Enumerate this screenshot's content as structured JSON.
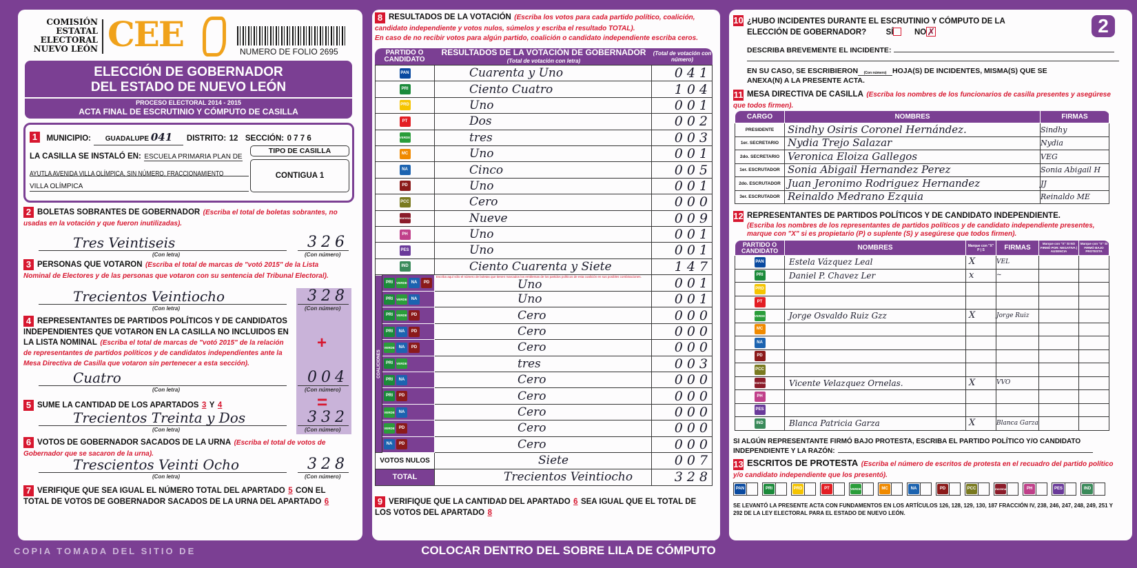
{
  "header": {
    "org_lines": [
      "COMISIÓN",
      "ESTATAL",
      "ELECTORAL",
      "NUEVO LEÓN"
    ],
    "logo_text": "CEE",
    "folio": "NUMERO DE FOLIO 2695",
    "title_1": "ELECCIÓN DE GOBERNADOR",
    "title_2": "DEL ESTADO DE NUEVO LEÓN",
    "process": "PROCESO ELECTORAL 2014 - 2015",
    "acta": "ACTA FINAL DE ESCRUTINIO Y CÓMPUTO DE CASILLA",
    "page_number": "2"
  },
  "s1": {
    "municipio_label": "MUNICIPIO:",
    "municipio": "GUADALUPE",
    "municipio_hand": "041",
    "distrito_label": "DISTRITO:",
    "distrito": "12",
    "seccion_label": "SECCIÓN:",
    "seccion": "0 7 7 6",
    "instalo_label": "LA CASILLA SE INSTALÓ EN:",
    "lugar_1": "ESCUELA PRIMARIA PLAN DE",
    "lugar_2": "AYUTLA AVENIDA VILLA OLÍMPICA, SIN NÚMERO, FRACCIONAMIENTO",
    "lugar_3": "VILLA OLÍMPICA",
    "tipo_label": "TIPO DE CASILLA",
    "tipo": "CONTIGUA 1"
  },
  "labels": {
    "con_letra": "(Con letra)",
    "con_numero": "(Con número)",
    "plus": "+",
    "equals": "="
  },
  "s2": {
    "title": "BOLETAS SOBRANTES DE GOBERNADOR",
    "note": "(Escriba el total de boletas sobrantes, no usadas en la votación y que fueron inutilizadas).",
    "letra": "Tres Veintiseis",
    "numero": "326"
  },
  "s3": {
    "title": "PERSONAS QUE VOTARON",
    "note": "(Escriba el total de marcas de \"votó 2015\" de la Lista Nominal de Electores y de las personas que votaron con su sentencia del Tribunal Electoral).",
    "letra": "Trecientos Veintiocho",
    "numero": "328"
  },
  "s4": {
    "title": "REPRESENTANTES DE PARTIDOS POLÍTICOS Y DE CANDIDATOS INDEPENDIENTES QUE VOTARON EN LA CASILLA NO INCLUIDOS EN LA LISTA NOMINAL",
    "note": "(Escriba el total de marcas de \"votó 2015\" de la relación de representantes de partidos políticos y de candidatos independientes ante la Mesa Directiva de Casilla que votaron sin pertenecer a esta sección).",
    "letra": "Cuatro",
    "numero": "004"
  },
  "s5": {
    "title": "SUME LA CANTIDAD DE LOS APARTADOS",
    "a": "3",
    "y": "Y",
    "b": "4",
    "letra": "Trecientos Treinta y Dos",
    "numero": "332"
  },
  "s6": {
    "title": "VOTOS DE GOBERNADOR SACADOS DE LA URNA",
    "note": "(Escriba el total de votos de Gobernador que se sacaron de la urna).",
    "letra": "Trescientos Veinti Ocho",
    "numero": "328"
  },
  "s7": {
    "t1": "VERIFIQUE QUE SEA IGUAL EL NÚMERO TOTAL DEL APARTADO",
    "a": "5",
    "t2": "CON EL TOTAL DE VOTOS DE GOBERNADOR SACADOS DE LA URNA DEL APARTADO",
    "b": "6"
  },
  "s8": {
    "title": "RESULTADOS DE LA VOTACIÓN",
    "note1": "(Escriba los votos para cada partido político, coalición, candidato independiente y votos nulos, súmelos y escriba el resultado TOTAL).",
    "note2": "En caso de no recibir votos para algún partido, coalición o candidato independiente escriba ceros.",
    "col1": "PARTIDO O CANDIDATO",
    "col2": "RESULTADOS DE LA VOTACIÓN DE GOBERNADOR",
    "col2_sub": "(Total de votación con letra)",
    "col3": "(Total de votación con número)",
    "coalition_note": "Escriba aquí sólo el número de boletas que tienen marcados los emblemas de los partidos políticos de esta coalición en sus posibles combinaciones.",
    "coalition_label": "COALICIONES",
    "rows": [
      {
        "party": "PAN",
        "color": "#0a4aa0",
        "letra": "Cuarenta y Uno",
        "numero": "041"
      },
      {
        "party": "PRI",
        "color": "#1b8a3a",
        "letra": "Ciento Cuatro",
        "numero": "104"
      },
      {
        "party": "PRD",
        "color": "#f5c400",
        "letra": "Uno",
        "numero": "001"
      },
      {
        "party": "PT",
        "color": "#e31e24",
        "letra": "Dos",
        "numero": "002"
      },
      {
        "party": "VERDE",
        "color": "#2a9d3a",
        "letra": "tres",
        "numero": "003"
      },
      {
        "party": "MC",
        "color": "#f08a00",
        "letra": "Uno",
        "numero": "001"
      },
      {
        "party": "NA",
        "color": "#1c63b0",
        "letra": "Cinco",
        "numero": "005"
      },
      {
        "party": "PD",
        "color": "#8b1a1a",
        "letra": "Uno",
        "numero": "001"
      },
      {
        "party": "PCC",
        "color": "#7a7a20",
        "letra": "Cero",
        "numero": "000"
      },
      {
        "party": "morena",
        "color": "#8b1c2a",
        "letra": "Nueve",
        "numero": "009"
      },
      {
        "party": "PH",
        "color": "#c0408a",
        "letra": "Uno",
        "numero": "001"
      },
      {
        "party": "PES",
        "color": "#6a3a9a",
        "letra": "Uno",
        "numero": "001"
      },
      {
        "party": "IND",
        "color": "#3a8a5a",
        "letra": "Ciento Cuarenta y Siete",
        "numero": "147"
      }
    ],
    "coalitions": [
      {
        "parties": [
          "PRI",
          "VERDE",
          "NA",
          "PD"
        ],
        "letra": "Uno",
        "numero": "001"
      },
      {
        "parties": [
          "PRI",
          "VERDE",
          "NA"
        ],
        "letra": "Uno",
        "numero": "001"
      },
      {
        "parties": [
          "PRI",
          "VERDE",
          "PD"
        ],
        "letra": "Cero",
        "numero": "000"
      },
      {
        "parties": [
          "PRI",
          "NA",
          "PD"
        ],
        "letra": "Cero",
        "numero": "000"
      },
      {
        "parties": [
          "VERDE",
          "NA",
          "PD"
        ],
        "letra": "Cero",
        "numero": "000"
      },
      {
        "parties": [
          "PRI",
          "VERDE"
        ],
        "letra": "tres",
        "numero": "003"
      },
      {
        "parties": [
          "PRI",
          "NA"
        ],
        "letra": "Cero",
        "numero": "000"
      },
      {
        "parties": [
          "PRI",
          "PD"
        ],
        "letra": "Cero",
        "numero": "000"
      },
      {
        "parties": [
          "VERDE",
          "NA"
        ],
        "letra": "Cero",
        "numero": "000"
      },
      {
        "parties": [
          "VERDE",
          "PD"
        ],
        "letra": "Cero",
        "numero": "000"
      },
      {
        "parties": [
          "NA",
          "PD"
        ],
        "letra": "Cero",
        "numero": "000"
      }
    ],
    "nulos_label": "VOTOS NULOS",
    "nulos_letra": "Siete",
    "nulos_numero": "007",
    "total_label": "TOTAL",
    "total_letra": "Trecientos Veintiocho",
    "total_numero": "328"
  },
  "s9": {
    "t1": "VERIFIQUE QUE LA CANTIDAD DEL APARTADO",
    "a": "6",
    "t2": "SEA IGUAL QUE EL TOTAL DE LOS VOTOS DEL APARTADO",
    "b": "8"
  },
  "s10": {
    "q1": "¿HUBO INCIDENTES DURANTE EL ESCRUTINIO Y CÓMPUTO DE LA",
    "q2": "ELECCIÓN DE GOBERNADOR?",
    "si": "SÍ",
    "no": "NO",
    "answer": "NO",
    "describe": "DESCRIBA BREVEMENTE EL INCIDENTE:",
    "hojas_1": "EN SU CASO, SE ESCRIBIERON",
    "hojas_2": "HOJA(S) DE INCIDENTES, MISMA(S) QUE SE",
    "hojas_3": "ANEXA(N) A LA PRESENTE ACTA.",
    "con_numero": "(Con número)"
  },
  "s11": {
    "title": "MESA DIRECTIVA DE CASILLA",
    "note": "(Escriba los nombres de los funcionarios de casilla presentes y asegúrese que todos firmen).",
    "cols": [
      "CARGO",
      "NOMBRES",
      "FIRMAS"
    ],
    "rows": [
      {
        "cargo": "PRESIDENTE",
        "nombre": "Sindhy Osiris Coronel Hernández.",
        "firma": "Sindhy"
      },
      {
        "cargo": "1er. SECRETARIO",
        "nombre": "Nydia Trejo Salazar",
        "firma": "Nydia"
      },
      {
        "cargo": "2do. SECRETARIO",
        "nombre": "Veronica Eloiza Gallegos",
        "firma": "VEG"
      },
      {
        "cargo": "1er. ESCRUTADOR",
        "nombre": "Sonia Abigail Hernandez Perez",
        "firma": "Sonia Abigail H"
      },
      {
        "cargo": "2do. ESCRUTADOR",
        "nombre": "Juan Jeronimo Rodriguez Hernandez",
        "firma": "JJ"
      },
      {
        "cargo": "3er. ESCRUTADOR",
        "nombre": "Reinaldo Medrano Ezquia",
        "firma": "Reinaldo ME"
      }
    ]
  },
  "s12": {
    "title": "REPRESENTANTES DE PARTIDOS POLÍTICOS Y DE CANDIDATO INDEPENDIENTE.",
    "note": "(Escriba los nombres de los representantes de partidos políticos y de candidato independiente presentes, marque con \"X\" si es propietario (P) o suplente (S) y asegúrese que todos firmen).",
    "cols": {
      "partido": "PARTIDO O CANDIDATO",
      "nombres": "NOMBRES",
      "marque": "Marque con \"X\"",
      "p": "P",
      "s": "S",
      "firmas": "FIRMAS",
      "negativa": "Marque con \"X\" SI NO FIRMÓ POR: NEGATIVA | AUSENCIA",
      "protesta": "Marque con \"X\" SI FIRMÓ BAJO PROTESTA"
    },
    "rows": [
      {
        "party": "PAN",
        "nombre": "Estela Vázquez Leal",
        "p": "X",
        "s": "",
        "firma": "VEL"
      },
      {
        "party": "PRI",
        "nombre": "Daniel P. Chavez Ler",
        "p": "x",
        "s": "",
        "firma": "~"
      },
      {
        "party": "PRD",
        "nombre": "",
        "p": "",
        "s": "",
        "firma": ""
      },
      {
        "party": "PT",
        "nombre": "",
        "p": "",
        "s": "",
        "firma": ""
      },
      {
        "party": "VERDE",
        "nombre": "Jorge Osvaldo Ruiz Gzz",
        "p": "X",
        "s": "",
        "firma": "Jorge Ruiz"
      },
      {
        "party": "MC",
        "nombre": "",
        "p": "",
        "s": "",
        "firma": ""
      },
      {
        "party": "NA",
        "nombre": "",
        "p": "",
        "s": "",
        "firma": ""
      },
      {
        "party": "PD",
        "nombre": "",
        "p": "",
        "s": "",
        "firma": ""
      },
      {
        "party": "PCC",
        "nombre": "",
        "p": "",
        "s": "",
        "firma": ""
      },
      {
        "party": "morena",
        "nombre": "Vicente Velazquez Ornelas.",
        "p": "X",
        "s": "",
        "firma": "VVO"
      },
      {
        "party": "PH",
        "nombre": "",
        "p": "",
        "s": "",
        "firma": ""
      },
      {
        "party": "PES",
        "nombre": "",
        "p": "",
        "s": "",
        "firma": ""
      },
      {
        "party": "IND",
        "nombre": "Blanca Patricia Garza",
        "p": "X",
        "s": "",
        "firma": "Blanca Garza"
      }
    ],
    "protesta_1": "SI ALGÚN REPRESENTANTE FIRMÓ BAJO PROTESTA, ESCRIBA EL PARTIDO POLÍTICO Y/O CANDIDATO",
    "protesta_2": "INDEPENDIENTE Y LA RAZÓN:"
  },
  "s13": {
    "title": "ESCRITOS DE PROTESTA",
    "note": "(Escriba el número de escritos de protesta en el recuadro del partido político y/o candidato independiente que los presentó).",
    "parties": [
      "PAN",
      "PRI",
      "PRD",
      "PT",
      "VERDE",
      "MC",
      "NA",
      "PD",
      "PCC",
      "morena",
      "PH",
      "PES",
      "IND"
    ]
  },
  "legal": "SE LEVANTÓ LA PRESENTE ACTA CON FUNDAMENTOS EN LOS ARTÍCULOS 126, 128, 129, 130, 187 FRACCIÓN IV, 238, 246, 247, 248, 249, 251 Y 292 DE LA LEY ELECTORAL PARA EL ESTADO DE NUEVO LEÓN.",
  "banner": "COLOCAR DENTRO DEL SOBRE LILA DE CÓMPUTO",
  "watermark": "COPIA TOMADA DEL SITIO DE",
  "colors": {
    "purple": "#7b3f93",
    "red": "#d7172f",
    "orange": "#f0a21b",
    "lavender": "#c9b3d9"
  }
}
